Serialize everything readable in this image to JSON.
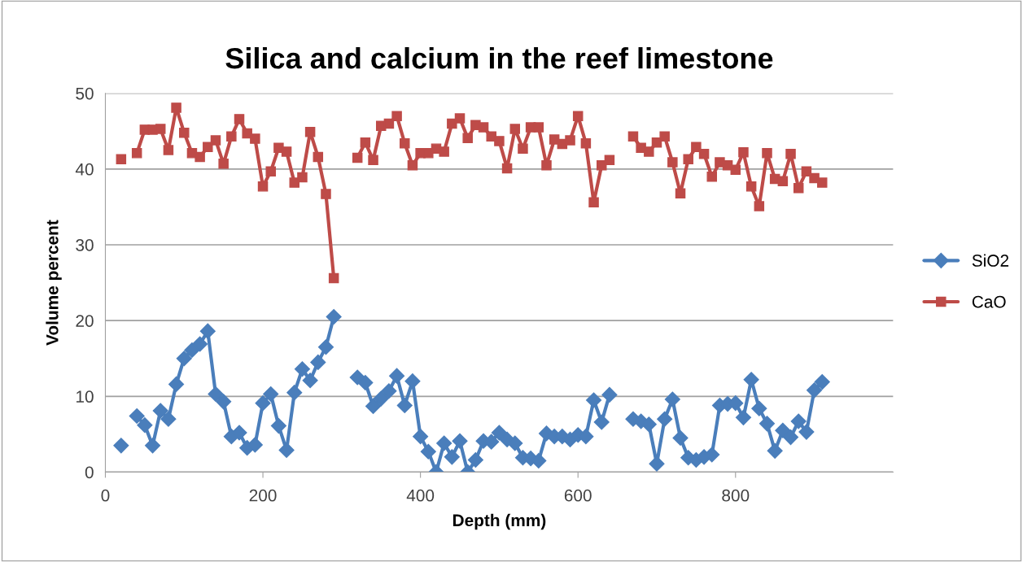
{
  "chart_data": {
    "type": "line",
    "title": "Silica and calcium in the reef limestone",
    "xlabel": "Depth (mm)",
    "ylabel": "Volume percent",
    "x": [
      20,
      30,
      40,
      50,
      60,
      70,
      80,
      90,
      100,
      110,
      120,
      130,
      140,
      150,
      160,
      170,
      180,
      190,
      200,
      210,
      220,
      230,
      240,
      250,
      260,
      270,
      280,
      290,
      300,
      310,
      320,
      330,
      340,
      350,
      360,
      370,
      380,
      390,
      400,
      410,
      420,
      430,
      440,
      450,
      460,
      470,
      480,
      490,
      500,
      510,
      520,
      530,
      540,
      550,
      560,
      570,
      580,
      590,
      600,
      610,
      620,
      630,
      640,
      650,
      660,
      670,
      680,
      690,
      700,
      710,
      720,
      730,
      740,
      750,
      760,
      770,
      780,
      790,
      800,
      810,
      820,
      830,
      840,
      850,
      860,
      870,
      880,
      890,
      900,
      910
    ],
    "series": [
      {
        "name": "SiO2",
        "color": "#4a7ebb",
        "marker": "diamond",
        "values": [
          3.5,
          null,
          7.4,
          6.2,
          3.5,
          8.1,
          7.0,
          11.6,
          15.0,
          16.1,
          16.9,
          18.6,
          10.3,
          9.3,
          4.7,
          5.2,
          3.2,
          3.6,
          9.1,
          10.3,
          6.1,
          2.9,
          10.5,
          13.6,
          12.1,
          14.5,
          16.5,
          20.5,
          null,
          null,
          12.5,
          11.8,
          8.7,
          9.7,
          10.7,
          12.7,
          8.8,
          12.0,
          4.7,
          2.7,
          0.0,
          3.8,
          2.0,
          4.1,
          0.0,
          1.6,
          4.1,
          4.0,
          5.2,
          4.3,
          3.8,
          1.9,
          1.8,
          1.5,
          5.1,
          4.7,
          4.7,
          4.3,
          4.9,
          4.7,
          9.5,
          6.6,
          10.2,
          null,
          null,
          7.0,
          6.7,
          6.3,
          1.1,
          7.0,
          9.6,
          4.5,
          1.9,
          1.6,
          2.0,
          2.3,
          8.8,
          9.0,
          9.1,
          7.2,
          12.2,
          8.4,
          6.4,
          2.8,
          5.5,
          4.6,
          6.7,
          5.3,
          10.8,
          11.9
        ]
      },
      {
        "name": "CaO",
        "color": "#be4b48",
        "marker": "square",
        "values": [
          41.3,
          null,
          42.1,
          45.2,
          45.2,
          45.3,
          42.5,
          48.1,
          44.8,
          42.1,
          41.6,
          42.9,
          43.8,
          40.7,
          44.3,
          46.6,
          44.7,
          44.0,
          37.7,
          39.7,
          42.8,
          42.3,
          38.2,
          38.9,
          44.9,
          41.6,
          36.7,
          25.6,
          null,
          null,
          41.5,
          43.5,
          41.2,
          45.7,
          46.0,
          47.0,
          43.4,
          40.5,
          42.1,
          42.1,
          42.7,
          42.3,
          46.0,
          46.7,
          44.1,
          45.8,
          45.5,
          44.3,
          43.7,
          40.1,
          45.3,
          42.7,
          45.5,
          45.5,
          40.5,
          43.9,
          43.3,
          43.8,
          47.0,
          43.4,
          35.6,
          40.5,
          41.2,
          null,
          null,
          44.3,
          42.8,
          42.3,
          43.5,
          44.3,
          40.9,
          36.8,
          41.3,
          42.9,
          42.0,
          39.0,
          40.9,
          40.5,
          39.9,
          42.2,
          37.7,
          35.1,
          42.1,
          38.7,
          38.4,
          42.0,
          37.5,
          39.7,
          38.8,
          38.2
        ]
      }
    ],
    "xlim": [
      0,
      1000
    ],
    "xticks": [
      0,
      200,
      400,
      600,
      800
    ],
    "ylim": [
      0,
      50
    ],
    "yticks": [
      0,
      10,
      20,
      30,
      40,
      50
    ],
    "grid": "y",
    "legend": "right",
    "line_style": "solid"
  }
}
